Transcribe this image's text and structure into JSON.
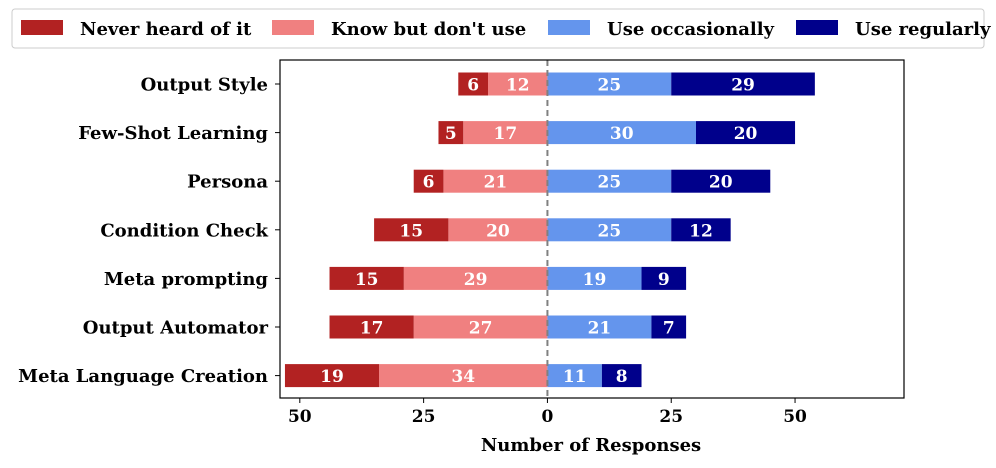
{
  "chart_data": {
    "type": "bar",
    "orientation": "horizontal",
    "stacked": "diverging",
    "xlabel": "Number of Responses",
    "ylabel": "",
    "title": "",
    "xlim": [
      -54,
      72
    ],
    "xticks": [
      -50,
      -25,
      0,
      25,
      50
    ],
    "xtick_labels": [
      "50",
      "25",
      "0",
      "25",
      "50"
    ],
    "legend_placement": "top",
    "grid": false,
    "zero_line": "dashed",
    "categories": [
      "Output Style",
      "Few-Shot Learning",
      "Persona",
      "Condition Check",
      "Meta prompting",
      "Output Automator",
      "Meta Language Creation"
    ],
    "series": [
      {
        "name": "Never heard of it",
        "side": "negative",
        "color": "#b22222",
        "values": [
          6,
          5,
          6,
          15,
          15,
          17,
          19
        ]
      },
      {
        "name": "Know but don't use",
        "side": "negative",
        "color": "#f08080",
        "values": [
          12,
          17,
          21,
          20,
          29,
          27,
          34
        ]
      },
      {
        "name": "Use occasionally",
        "side": "positive",
        "color": "#6495ed",
        "values": [
          25,
          30,
          25,
          25,
          19,
          21,
          11
        ]
      },
      {
        "name": "Use regularly",
        "side": "positive",
        "color": "#00008b",
        "values": [
          29,
          20,
          20,
          12,
          9,
          7,
          8
        ]
      }
    ]
  }
}
